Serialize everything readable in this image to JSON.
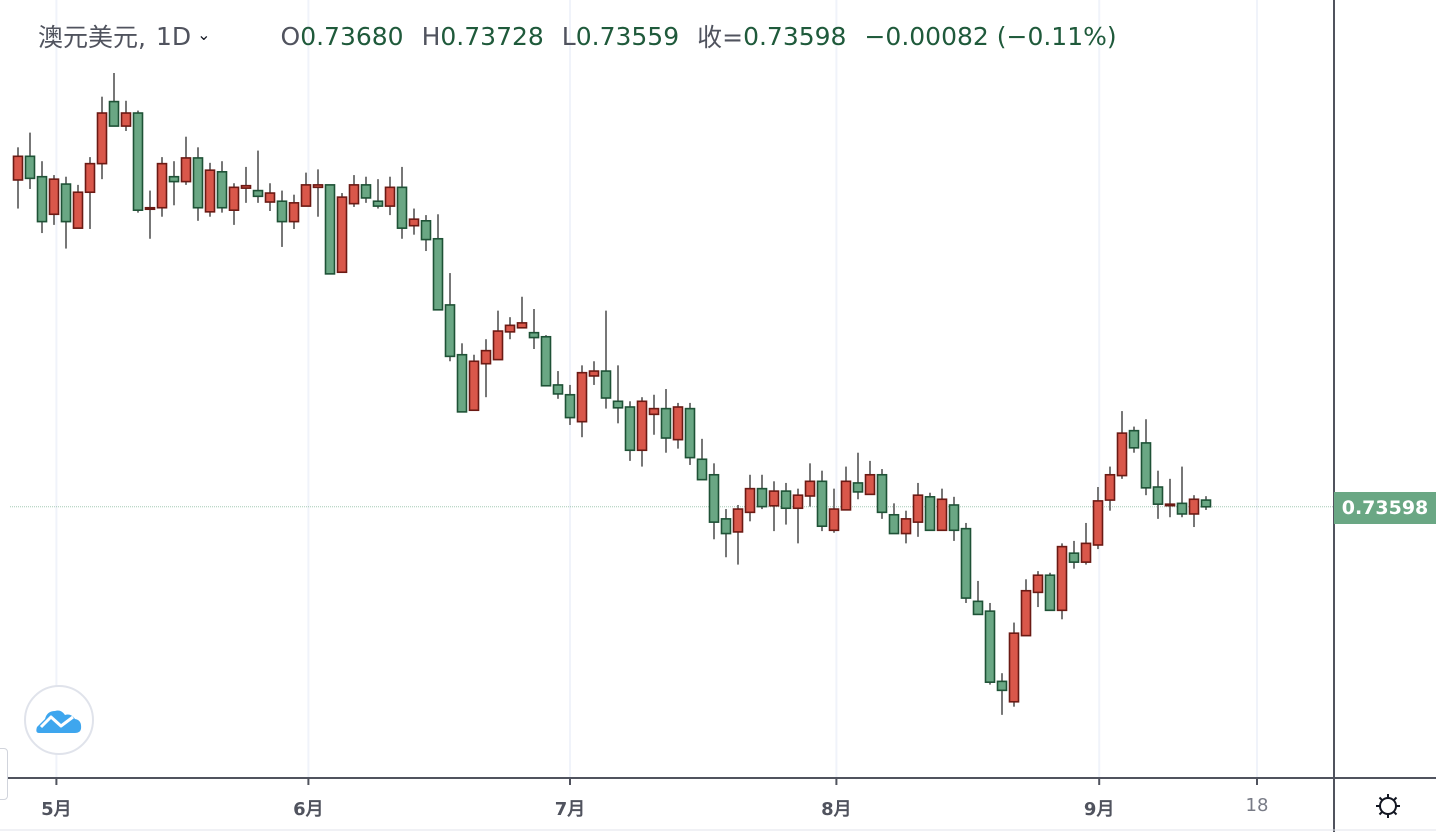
{
  "header": {
    "symbol": "澳元美元,",
    "interval": "1D",
    "open_label": "O",
    "open": "0.73680",
    "high_label": "H",
    "high": "0.73728",
    "low_label": "L",
    "low": "0.73559",
    "close_label": "收=",
    "close": "0.73598",
    "change": "−0.00082 (−0.11%)"
  },
  "last_price_label": "0.73598",
  "colors": {
    "up_fill": "#d9574a",
    "up_border": "#6b1a14",
    "down_fill": "#6aa784",
    "down_border": "#1e5236",
    "wick": "#777777",
    "last_price": "#6aa784"
  },
  "chart_data": {
    "type": "candlestick",
    "title": "澳元美元, 1D",
    "xlabel": "",
    "ylabel": "",
    "ylim": [
      0.7031,
      0.798
    ],
    "grid": "vertical",
    "up_color": "red",
    "down_color": "green",
    "x_ticks": [
      {
        "label": "5月",
        "index": 3.2
      },
      {
        "label": "6月",
        "index": 24.2
      },
      {
        "label": "7月",
        "index": 46.0
      },
      {
        "label": "8月",
        "index": 68.2
      },
      {
        "label": "9月",
        "index": 90.1
      },
      {
        "label": "18",
        "index": 103.25
      }
    ],
    "ohlc": [
      [
        0.776,
        0.78,
        0.7725,
        0.7789
      ],
      [
        0.7789,
        0.7818,
        0.7749,
        0.7762
      ],
      [
        0.7764,
        0.7783,
        0.7695,
        0.7709
      ],
      [
        0.7718,
        0.7766,
        0.7705,
        0.7761
      ],
      [
        0.7755,
        0.7764,
        0.7676,
        0.7709
      ],
      [
        0.7701,
        0.7754,
        0.7701,
        0.7745
      ],
      [
        0.7745,
        0.7788,
        0.77,
        0.778
      ],
      [
        0.778,
        0.7862,
        0.7761,
        0.7842
      ],
      [
        0.7856,
        0.7891,
        0.7826,
        0.7826
      ],
      [
        0.7826,
        0.7857,
        0.782,
        0.7842
      ],
      [
        0.7842,
        0.7845,
        0.772,
        0.7723
      ],
      [
        0.7725,
        0.7747,
        0.7688,
        0.7726
      ],
      [
        0.7726,
        0.7788,
        0.7715,
        0.778
      ],
      [
        0.7764,
        0.7783,
        0.7729,
        0.7758
      ],
      [
        0.7758,
        0.7813,
        0.7754,
        0.7787
      ],
      [
        0.7787,
        0.78,
        0.771,
        0.7726
      ],
      [
        0.7721,
        0.7781,
        0.7715,
        0.7772
      ],
      [
        0.777,
        0.7783,
        0.772,
        0.7726
      ],
      [
        0.7723,
        0.7756,
        0.7705,
        0.7751
      ],
      [
        0.775,
        0.7776,
        0.7732,
        0.7753
      ],
      [
        0.7747,
        0.7796,
        0.7732,
        0.774
      ],
      [
        0.7733,
        0.7756,
        0.7722,
        0.7744
      ],
      [
        0.7734,
        0.7747,
        0.7678,
        0.7709
      ],
      [
        0.7709,
        0.7742,
        0.77,
        0.7732
      ],
      [
        0.7728,
        0.7769,
        0.7728,
        0.7754
      ],
      [
        0.7751,
        0.7773,
        0.7715,
        0.7754
      ],
      [
        0.7754,
        0.7754,
        0.7645,
        0.7645
      ],
      [
        0.7647,
        0.7744,
        0.7647,
        0.7739
      ],
      [
        0.7731,
        0.7766,
        0.7727,
        0.7754
      ],
      [
        0.7754,
        0.7764,
        0.7732,
        0.7738
      ],
      [
        0.7734,
        0.7761,
        0.7725,
        0.7728
      ],
      [
        0.7728,
        0.7764,
        0.7717,
        0.7751
      ],
      [
        0.7751,
        0.7776,
        0.7688,
        0.7701
      ],
      [
        0.7704,
        0.7725,
        0.7693,
        0.7712
      ],
      [
        0.771,
        0.7717,
        0.7673,
        0.7687
      ],
      [
        0.7688,
        0.7718,
        0.7601,
        0.7601
      ],
      [
        0.7607,
        0.7646,
        0.7538,
        0.7544
      ],
      [
        0.7546,
        0.756,
        0.7476,
        0.7476
      ],
      [
        0.7478,
        0.7546,
        0.7478,
        0.7538
      ],
      [
        0.7535,
        0.7565,
        0.7494,
        0.7551
      ],
      [
        0.754,
        0.76,
        0.754,
        0.7575
      ],
      [
        0.7574,
        0.7592,
        0.7565,
        0.7582
      ],
      [
        0.7579,
        0.7617,
        0.7579,
        0.7585
      ],
      [
        0.7573,
        0.7602,
        0.7553,
        0.7567
      ],
      [
        0.7568,
        0.757,
        0.7508,
        0.7508
      ],
      [
        0.7509,
        0.7526,
        0.7492,
        0.7498
      ],
      [
        0.7497,
        0.7509,
        0.746,
        0.7469
      ],
      [
        0.7464,
        0.7533,
        0.7445,
        0.7524
      ],
      [
        0.752,
        0.7538,
        0.7509,
        0.7526
      ],
      [
        0.7526,
        0.76,
        0.748,
        0.7493
      ],
      [
        0.7489,
        0.7533,
        0.7462,
        0.7481
      ],
      [
        0.7482,
        0.7489,
        0.7416,
        0.7429
      ],
      [
        0.7429,
        0.7494,
        0.7409,
        0.7489
      ],
      [
        0.7473,
        0.7497,
        0.7448,
        0.748
      ],
      [
        0.748,
        0.7504,
        0.7426,
        0.7444
      ],
      [
        0.7442,
        0.7487,
        0.7431,
        0.7482
      ],
      [
        0.748,
        0.7487,
        0.7411,
        0.742
      ],
      [
        0.7418,
        0.7443,
        0.7393,
        0.7393
      ],
      [
        0.7399,
        0.7413,
        0.732,
        0.7341
      ],
      [
        0.7345,
        0.7357,
        0.7298,
        0.7327
      ],
      [
        0.7329,
        0.7362,
        0.7289,
        0.7357
      ],
      [
        0.7353,
        0.7399,
        0.7342,
        0.7382
      ],
      [
        0.7382,
        0.7399,
        0.7357,
        0.736
      ],
      [
        0.7361,
        0.7391,
        0.733,
        0.7379
      ],
      [
        0.7379,
        0.7389,
        0.7338,
        0.7358
      ],
      [
        0.7358,
        0.7382,
        0.7315,
        0.7374
      ],
      [
        0.7373,
        0.7413,
        0.736,
        0.7391
      ],
      [
        0.7391,
        0.7404,
        0.733,
        0.7336
      ],
      [
        0.7331,
        0.7382,
        0.7328,
        0.7357
      ],
      [
        0.7356,
        0.7409,
        0.7356,
        0.7391
      ],
      [
        0.7389,
        0.7426,
        0.7369,
        0.7378
      ],
      [
        0.7375,
        0.7416,
        0.7375,
        0.7399
      ],
      [
        0.7399,
        0.7406,
        0.7345,
        0.7353
      ],
      [
        0.735,
        0.7364,
        0.7327,
        0.7327
      ],
      [
        0.7327,
        0.7355,
        0.7315,
        0.7345
      ],
      [
        0.7341,
        0.7389,
        0.7323,
        0.7374
      ],
      [
        0.7372,
        0.7377,
        0.7331,
        0.7331
      ],
      [
        0.7331,
        0.7382,
        0.7331,
        0.7369
      ],
      [
        0.7362,
        0.7372,
        0.7318,
        0.7331
      ],
      [
        0.7333,
        0.734,
        0.7242,
        0.7248
      ],
      [
        0.7244,
        0.7269,
        0.7228,
        0.7228
      ],
      [
        0.7232,
        0.7242,
        0.7142,
        0.7145
      ],
      [
        0.7146,
        0.7156,
        0.7105,
        0.7135
      ],
      [
        0.7121,
        0.7218,
        0.7115,
        0.7205
      ],
      [
        0.7202,
        0.7271,
        0.7202,
        0.7257
      ],
      [
        0.7255,
        0.7281,
        0.7237,
        0.7276
      ],
      [
        0.7276,
        0.7279,
        0.7233,
        0.7233
      ],
      [
        0.7233,
        0.7315,
        0.7222,
        0.7311
      ],
      [
        0.7303,
        0.7318,
        0.7284,
        0.7292
      ],
      [
        0.7292,
        0.734,
        0.7289,
        0.7315
      ],
      [
        0.7313,
        0.7384,
        0.7308,
        0.7367
      ],
      [
        0.7368,
        0.7409,
        0.7355,
        0.7399
      ],
      [
        0.7398,
        0.7477,
        0.7394,
        0.745
      ],
      [
        0.7453,
        0.7458,
        0.7426,
        0.7432
      ],
      [
        0.7438,
        0.7467,
        0.7374,
        0.7383
      ],
      [
        0.7384,
        0.7404,
        0.7345,
        0.7363
      ],
      [
        0.7362,
        0.7394,
        0.7347,
        0.7363
      ],
      [
        0.7364,
        0.7409,
        0.7347,
        0.7351
      ],
      [
        0.7351,
        0.7374,
        0.7335,
        0.7369
      ],
      [
        0.7368,
        0.73728,
        0.73559,
        0.73598
      ]
    ],
    "last_price": 0.73598
  }
}
